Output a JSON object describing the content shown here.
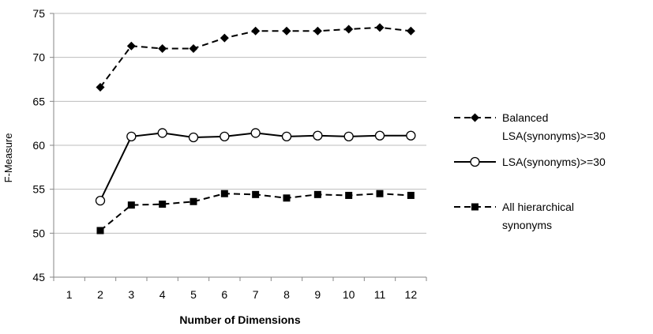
{
  "chart_data": {
    "type": "line",
    "title": "",
    "xlabel": "Number of Dimensions",
    "ylabel": "F-Measure",
    "categories": [
      "1",
      "2",
      "3",
      "4",
      "5",
      "6",
      "7",
      "8",
      "9",
      "10",
      "11",
      "12"
    ],
    "ylim": [
      45,
      75
    ],
    "yticks": [
      45,
      50,
      55,
      60,
      65,
      70,
      75
    ],
    "grid": "horizontal",
    "legend_position": "right",
    "series": [
      {
        "name_lines": [
          "Balanced",
          "LSA(synonyms)>=30"
        ],
        "marker": "diamond",
        "line_style": "dashed",
        "color": "#000000",
        "values": [
          null,
          66.6,
          71.3,
          71.0,
          71.0,
          72.2,
          73.0,
          73.0,
          73.0,
          73.2,
          73.4,
          73.0
        ]
      },
      {
        "name_lines": [
          "LSA(synonyms)>=30"
        ],
        "marker": "open-circle",
        "line_style": "solid",
        "color": "#000000",
        "values": [
          null,
          53.7,
          61.0,
          61.4,
          60.9,
          61.0,
          61.4,
          61.0,
          61.1,
          61.0,
          61.1,
          61.1
        ]
      },
      {
        "name_lines": [
          "All hierarchical",
          "synonyms"
        ],
        "marker": "square",
        "line_style": "dashed",
        "color": "#000000",
        "values": [
          null,
          50.3,
          53.2,
          53.3,
          53.6,
          54.5,
          54.4,
          54.0,
          54.4,
          54.3,
          54.5,
          54.3
        ]
      }
    ]
  }
}
